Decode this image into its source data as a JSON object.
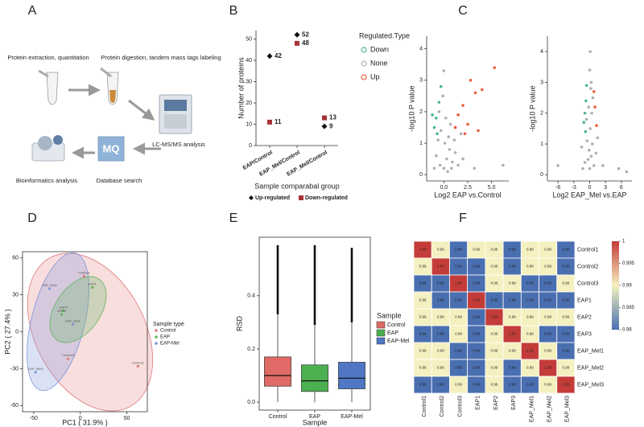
{
  "workflow": {
    "panel": "A",
    "steps": [
      "Protein extraction, quantitation",
      "Protein digestion, tandem mass tags labeling",
      "LC-MS/MS analysis",
      "Database search",
      "Bioinformatics analysis"
    ]
  },
  "chart_data": [
    {
      "panel": "B",
      "type": "dot",
      "ylabel": "Number of proteins",
      "xlabel": "Sample comparabal group",
      "categories": [
        "EAP/Control",
        "EAP_Mel/Control",
        "EAP_Mel/Control"
      ],
      "series": [
        {
          "name": "Up-regulated",
          "color": "#111111",
          "marker": "diamond",
          "values": [
            42,
            52,
            9
          ]
        },
        {
          "name": "Down-regulated",
          "color": "#a83232",
          "marker": "square",
          "values": [
            11,
            48,
            13
          ]
        }
      ],
      "ylim": [
        0,
        54
      ],
      "yticks": [
        0,
        10,
        20,
        30,
        40,
        50
      ]
    },
    {
      "panel": "C",
      "type": "scatter",
      "xlabel": "Log2 EAP vs.Control",
      "ylabel": "-log10 P value",
      "legend_title": "Regulated.Type",
      "series": [
        {
          "name": "Down",
          "color": "#4db89a",
          "x": [
            -0.8,
            -0.5,
            -1.0,
            -0.3,
            -0.7,
            -1.2
          ],
          "y": [
            1.8,
            2.3,
            1.5,
            2.8,
            1.3,
            1.9
          ]
        },
        {
          "name": "None",
          "color": "#b0b0b0",
          "x": [
            0,
            0.3,
            -0.4,
            0.6,
            -0.8,
            0.1,
            0.5,
            -0.3,
            0.9,
            1.2,
            -1.0,
            0.2,
            -0.5,
            0.7,
            1.5,
            2.0,
            -0.1,
            0.4,
            0.8,
            1.1,
            -0.6,
            0,
            3.2,
            6.2,
            1.8
          ],
          "y": [
            0.2,
            0.5,
            0.3,
            0.8,
            0.6,
            1.0,
            1.2,
            1.4,
            0.4,
            0.7,
            0.2,
            1.8,
            2.0,
            1.6,
            0.3,
            0.5,
            2.5,
            0.1,
            0.2,
            1.1,
            1.1,
            3.3,
            0.2,
            0.3,
            1.3
          ]
        },
        {
          "name": "Up",
          "color": "#e8603c",
          "x": [
            1.5,
            2.0,
            2.5,
            3.3,
            4.0,
            2.8,
            5.3,
            1.2,
            3.6,
            2.2
          ],
          "y": [
            1.9,
            2.2,
            1.6,
            2.6,
            2.7,
            3.0,
            3.4,
            1.5,
            1.4,
            1.3
          ]
        }
      ],
      "xlim": [
        -1.8,
        6.8
      ],
      "xticks": [
        {
          "value": 0,
          "label": "0.0"
        },
        2.5,
        {
          "value": 5,
          "label": "5.0"
        }
      ],
      "ylim": [
        -0.2,
        4.4
      ],
      "yticks": [
        0,
        1,
        2,
        3,
        4
      ]
    },
    {
      "type": "scatter",
      "xlabel": "Log2 EAP_Mel vs.EAP",
      "ylabel": "-log10 P value",
      "series": [
        {
          "color": "#4db89a",
          "x": [
            -0.7,
            -0.9,
            -0.6,
            -1.1,
            -0.8
          ],
          "y": [
            2.4,
            2.0,
            2.9,
            1.7,
            1.4
          ]
        },
        {
          "color": "#b0b0b0",
          "x": [
            0,
            0.3,
            -0.3,
            0.5,
            -0.5,
            0.1,
            0.4,
            -0.2,
            0.2,
            0,
            0.8,
            -0.9,
            1.2,
            -1.3,
            2.5,
            5.5,
            -6,
            0.6,
            -0.6,
            0.3,
            1.5,
            -1.5,
            7,
            0.1,
            -0.1
          ],
          "y": [
            0.2,
            0.6,
            0.5,
            1.0,
            1.1,
            1.5,
            2.0,
            2.2,
            2.8,
            3.4,
            0.3,
            0.4,
            0.7,
            0.2,
            0.3,
            0.2,
            0.3,
            2.5,
            1.8,
            3.0,
            1.2,
            0.9,
            0.1,
            4.0,
            0.8
          ]
        },
        {
          "color": "#e8603c",
          "x": [
            1.0,
            1.3,
            0.8
          ],
          "y": [
            2.2,
            1.6,
            2.7
          ]
        }
      ],
      "xlim": [
        -8,
        8
      ],
      "xticks": [
        -6,
        -3,
        0,
        3,
        6
      ],
      "ylim": [
        -0.2,
        4.5
      ],
      "yticks": [
        0,
        1,
        2,
        3,
        4
      ]
    },
    {
      "panel": "D",
      "type": "scatter",
      "frame": true,
      "xlabel": "PC1 ( 31.9% )",
      "ylabel": "PC2 ( 27.4% )",
      "legend_title": "Sample type",
      "series": [
        {
          "name": "Control",
          "color": "#e07a7a",
          "x": [
            4,
            62,
            -13
          ],
          "y": [
            45,
            -28,
            -22
          ],
          "labels": [
            "Control1",
            "Control2",
            "Control3"
          ]
        },
        {
          "name": "EAP",
          "color": "#5fb35f",
          "x": [
            13,
            -18,
            -20
          ],
          "y": [
            36,
            17,
            14
          ],
          "labels": [
            "EAP1",
            "EAP2",
            "EAP3"
          ]
        },
        {
          "name": "EAP-Mel",
          "color": "#7f95dc",
          "x": [
            -33,
            -8,
            -48
          ],
          "y": [
            35,
            6,
            -33
          ],
          "labels": [
            "EAP_Mel1",
            "EAP_Mel2",
            "EAP_Mel3"
          ]
        }
      ],
      "xlim": [
        -62,
        72
      ],
      "xticks": [
        -50,
        0,
        50
      ],
      "ylim": [
        -65,
        65
      ],
      "yticks": [
        -60,
        -30,
        0,
        30,
        60
      ]
    },
    {
      "panel": "E",
      "type": "box",
      "xlabel": "Sample",
      "ylabel": "RSD",
      "legend_title": "Sample",
      "categories": [
        "Control",
        "EAP",
        "EAP-Mel"
      ],
      "colors": [
        "#e06a66",
        "#4caf50",
        "#4f77c4"
      ],
      "whisker_low": [
        0,
        0,
        0
      ],
      "q1": [
        0.06,
        0.04,
        0.05
      ],
      "median": [
        0.1,
        0.08,
        0.09
      ],
      "q3": [
        0.17,
        0.14,
        0.15
      ],
      "whisker_high": [
        0.33,
        0.29,
        0.3
      ],
      "max": [
        0.59,
        0.59,
        0.58
      ],
      "ylim": [
        -0.03,
        0.62
      ],
      "yticks": [
        {
          "value": 0,
          "label": "0.0"
        },
        0.2,
        0.4
      ]
    },
    {
      "panel": "F",
      "type": "heatmap",
      "categories": [
        "Control1",
        "Control2",
        "Control3",
        "EAP1",
        "EAP2",
        "EAP3",
        "EAP_Mel1",
        "EAP_Mel2",
        "EAP_Mel3"
      ],
      "values": [
        [
          1,
          0.99,
          0.98,
          0.99,
          0.99,
          0.98,
          0.99,
          0.99,
          0.98
        ],
        [
          0.99,
          1,
          0.98,
          0.98,
          0.99,
          0.98,
          0.99,
          0.99,
          0.98
        ],
        [
          0.98,
          0.98,
          1,
          0.98,
          0.99,
          0.99,
          0.98,
          0.98,
          0.99
        ],
        [
          0.99,
          0.98,
          0.98,
          1,
          0.98,
          0.98,
          0.98,
          0.98,
          0.98
        ],
        [
          0.99,
          0.99,
          0.99,
          0.98,
          1,
          0.99,
          0.99,
          0.99,
          0.99
        ],
        [
          0.98,
          0.98,
          0.99,
          0.98,
          0.99,
          1,
          0.99,
          0.98,
          0.98
        ],
        [
          0.99,
          0.99,
          0.98,
          0.98,
          0.99,
          0.99,
          1,
          0.99,
          0.98
        ],
        [
          0.99,
          0.99,
          0.98,
          0.98,
          0.99,
          0.98,
          0.99,
          1,
          0.99
        ],
        [
          0.98,
          0.98,
          0.99,
          0.98,
          0.99,
          0.98,
          0.98,
          0.99,
          1
        ]
      ],
      "value_labels": [
        [
          "1.00",
          "0.99",
          "0.98",
          "0.99",
          "0.99",
          "0.98",
          "0.99",
          "0.99",
          "0.98"
        ],
        [
          "0.99",
          "1.00",
          "0.98",
          "0.98",
          "0.99",
          "0.98",
          "0.99",
          "0.99",
          "0.98"
        ],
        [
          "0.98",
          "0.98",
          "1.00",
          "0.98",
          "0.99",
          "0.99",
          "0.98",
          "0.98",
          "0.99"
        ],
        [
          "0.99",
          "0.98",
          "0.98",
          "1.00",
          "0.98",
          "0.98",
          "0.98",
          "0.98",
          "0.98"
        ],
        [
          "0.99",
          "0.99",
          "0.99",
          "0.98",
          "1.00",
          "0.99",
          "0.99",
          "0.99",
          "0.99"
        ],
        [
          "0.98",
          "0.98",
          "0.99",
          "0.98",
          "0.99",
          "1.00",
          "0.99",
          "0.98",
          "0.98"
        ],
        [
          "0.99",
          "0.99",
          "0.98",
          "0.98",
          "0.99",
          "0.99",
          "1.00",
          "0.99",
          "0.98"
        ],
        [
          "0.99",
          "0.99",
          "0.98",
          "0.98",
          "0.99",
          "0.98",
          "0.99",
          "1.00",
          "0.99"
        ],
        [
          "0.98",
          "0.98",
          "0.99",
          "0.98",
          "0.99",
          "0.98",
          "0.98",
          "0.99",
          "1.00"
        ]
      ],
      "clim": [
        0.98,
        1
      ],
      "colorbar_ticks": [
        0.98,
        0.985,
        0.99,
        0.995,
        1
      ],
      "colors": [
        "#4a6fb0",
        "#f5f0c0",
        "#c43c39"
      ]
    }
  ]
}
